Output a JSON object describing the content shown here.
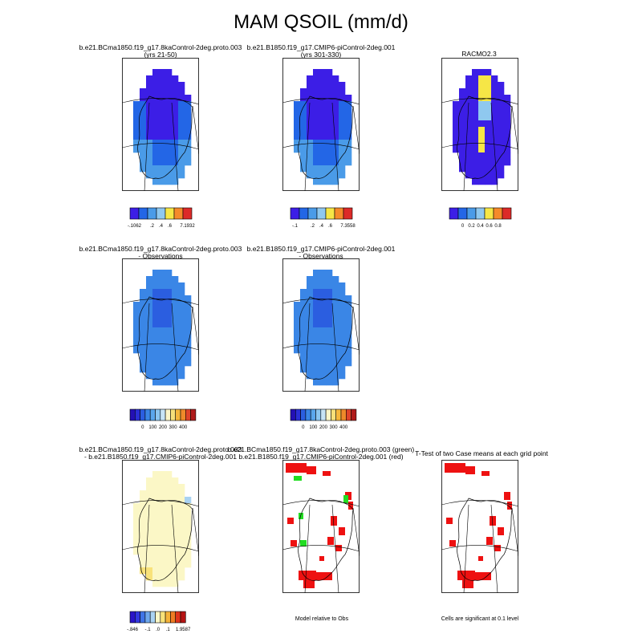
{
  "title": "MAM QSOIL (mm/d)",
  "panels": [
    {
      "id": "p1",
      "title": [
        "b.e21.BCma1850.f19_g17.8kaControl-2deg.proto.003",
        "(yrs 21-50)"
      ],
      "map": "ctrl",
      "variant": 0
    },
    {
      "id": "p2",
      "title": [
        "b.e21.B1850.f19_g17.CMIP6-piControl-2deg.001",
        "(yrs 301-330)"
      ],
      "map": "ctrl",
      "variant": 1
    },
    {
      "id": "p3",
      "title": [
        "RACMO2.3"
      ],
      "map": "racmo",
      "variant": 0
    },
    {
      "id": "p4",
      "title": [
        "b.e21.BCma1850.f19_g17.8kaControl-2deg.proto.003",
        "- Observations"
      ],
      "map": "obs",
      "variant": 0
    },
    {
      "id": "p5",
      "title": [
        "b.e21.B1850.f19_g17.CMIP6-piControl-2deg.001",
        "- Observations"
      ],
      "map": "obs",
      "variant": 1
    },
    {
      "id": "p6",
      "title": [
        "b.e21.BCma1850.f19_g17.8kaControl-2deg.proto.003",
        "- b.e21.B1850.f19_g17.CMIP6-piControl-2deg.001"
      ],
      "map": "diff",
      "variant": 0
    },
    {
      "id": "p7",
      "title": [
        "b.e21.BCma1850.f19_g17.8kaControl-2deg.proto.003 (green)",
        "b.e21.B1850.f19_g17.CMIP6-piControl-2deg.001 (red)"
      ],
      "map": "redgreen",
      "variant": 0
    },
    {
      "id": "p8",
      "title": [
        "T-Test of two Case means at each grid point"
      ],
      "map": "ttest",
      "variant": 0
    }
  ],
  "legends": [
    {
      "id": "l1",
      "colors": [
        "#3c1ee6",
        "#2366e6",
        "#4a9be8",
        "#8fc8ef",
        "#f6e646",
        "#f58a2a",
        "#dc2a28"
      ],
      "labels": [
        "-.1062",
        ".2",
        ".4",
        ".6",
        "7.1932"
      ],
      "label_slots": [
        0,
        2,
        3,
        4,
        6
      ]
    },
    {
      "id": "l2",
      "colors": [
        "#3c1ee6",
        "#2366e6",
        "#4a9be8",
        "#8fc8ef",
        "#f6e646",
        "#f58a2a",
        "#dc2a28"
      ],
      "labels": [
        "-.1",
        ".2",
        ".4",
        ".6",
        "7.3558"
      ],
      "label_slots": [
        0,
        2,
        3,
        4,
        6
      ]
    },
    {
      "id": "l3",
      "colors": [
        "#3c1ee6",
        "#2366e6",
        "#4a9be8",
        "#8fc8ef",
        "#f6e646",
        "#f58a2a",
        "#dc2a28"
      ],
      "labels": [
        "0",
        "0.2",
        "0.4",
        "0.6",
        "0.8"
      ],
      "label_slots": [
        1,
        2,
        3,
        4,
        5
      ]
    },
    {
      "id": "l4",
      "colors": [
        "#2410b4",
        "#2b2fd6",
        "#2b5ee0",
        "#3a86e6",
        "#5aa6ec",
        "#8cc6f0",
        "#c6e4f6",
        "#fbf6c8",
        "#f6e07a",
        "#f5b73c",
        "#ef8a2a",
        "#e0442a",
        "#b01a1a"
      ],
      "labels": [
        "0",
        "100",
        "200",
        "300",
        "400"
      ],
      "label_slots": [
        2,
        4,
        6,
        8,
        10
      ]
    },
    {
      "id": "l5",
      "colors": [
        "#2410b4",
        "#2b2fd6",
        "#2b5ee0",
        "#3a86e6",
        "#5aa6ec",
        "#8cc6f0",
        "#c6e4f6",
        "#fbf6c8",
        "#f6e07a",
        "#f5b73c",
        "#ef8a2a",
        "#e0442a",
        "#b01a1a"
      ],
      "labels": [
        "0",
        "100",
        "200",
        "300",
        "400"
      ],
      "label_slots": [
        2,
        4,
        6,
        8,
        10
      ]
    },
    {
      "id": "l6",
      "colors": [
        "#2a14c8",
        "#3338e0",
        "#3f74e6",
        "#6fa8ec",
        "#a9d2f2",
        "#fbf7c6",
        "#f8e27a",
        "#f5b33a",
        "#ef7c24",
        "#e0341c",
        "#b51414"
      ],
      "labels": [
        "-.846",
        "-.1",
        ".0",
        ".1",
        "1.9587"
      ],
      "label_slots": [
        0,
        3,
        5,
        7,
        10
      ]
    }
  ],
  "notes": {
    "model_relative": "Model relative to Obs",
    "significance": "Cells are significant at 0.1 level"
  },
  "palette": {
    "outline": "#000000",
    "ocean": "#ffffff",
    "green": "#22dd22",
    "red": "#ee1111"
  }
}
